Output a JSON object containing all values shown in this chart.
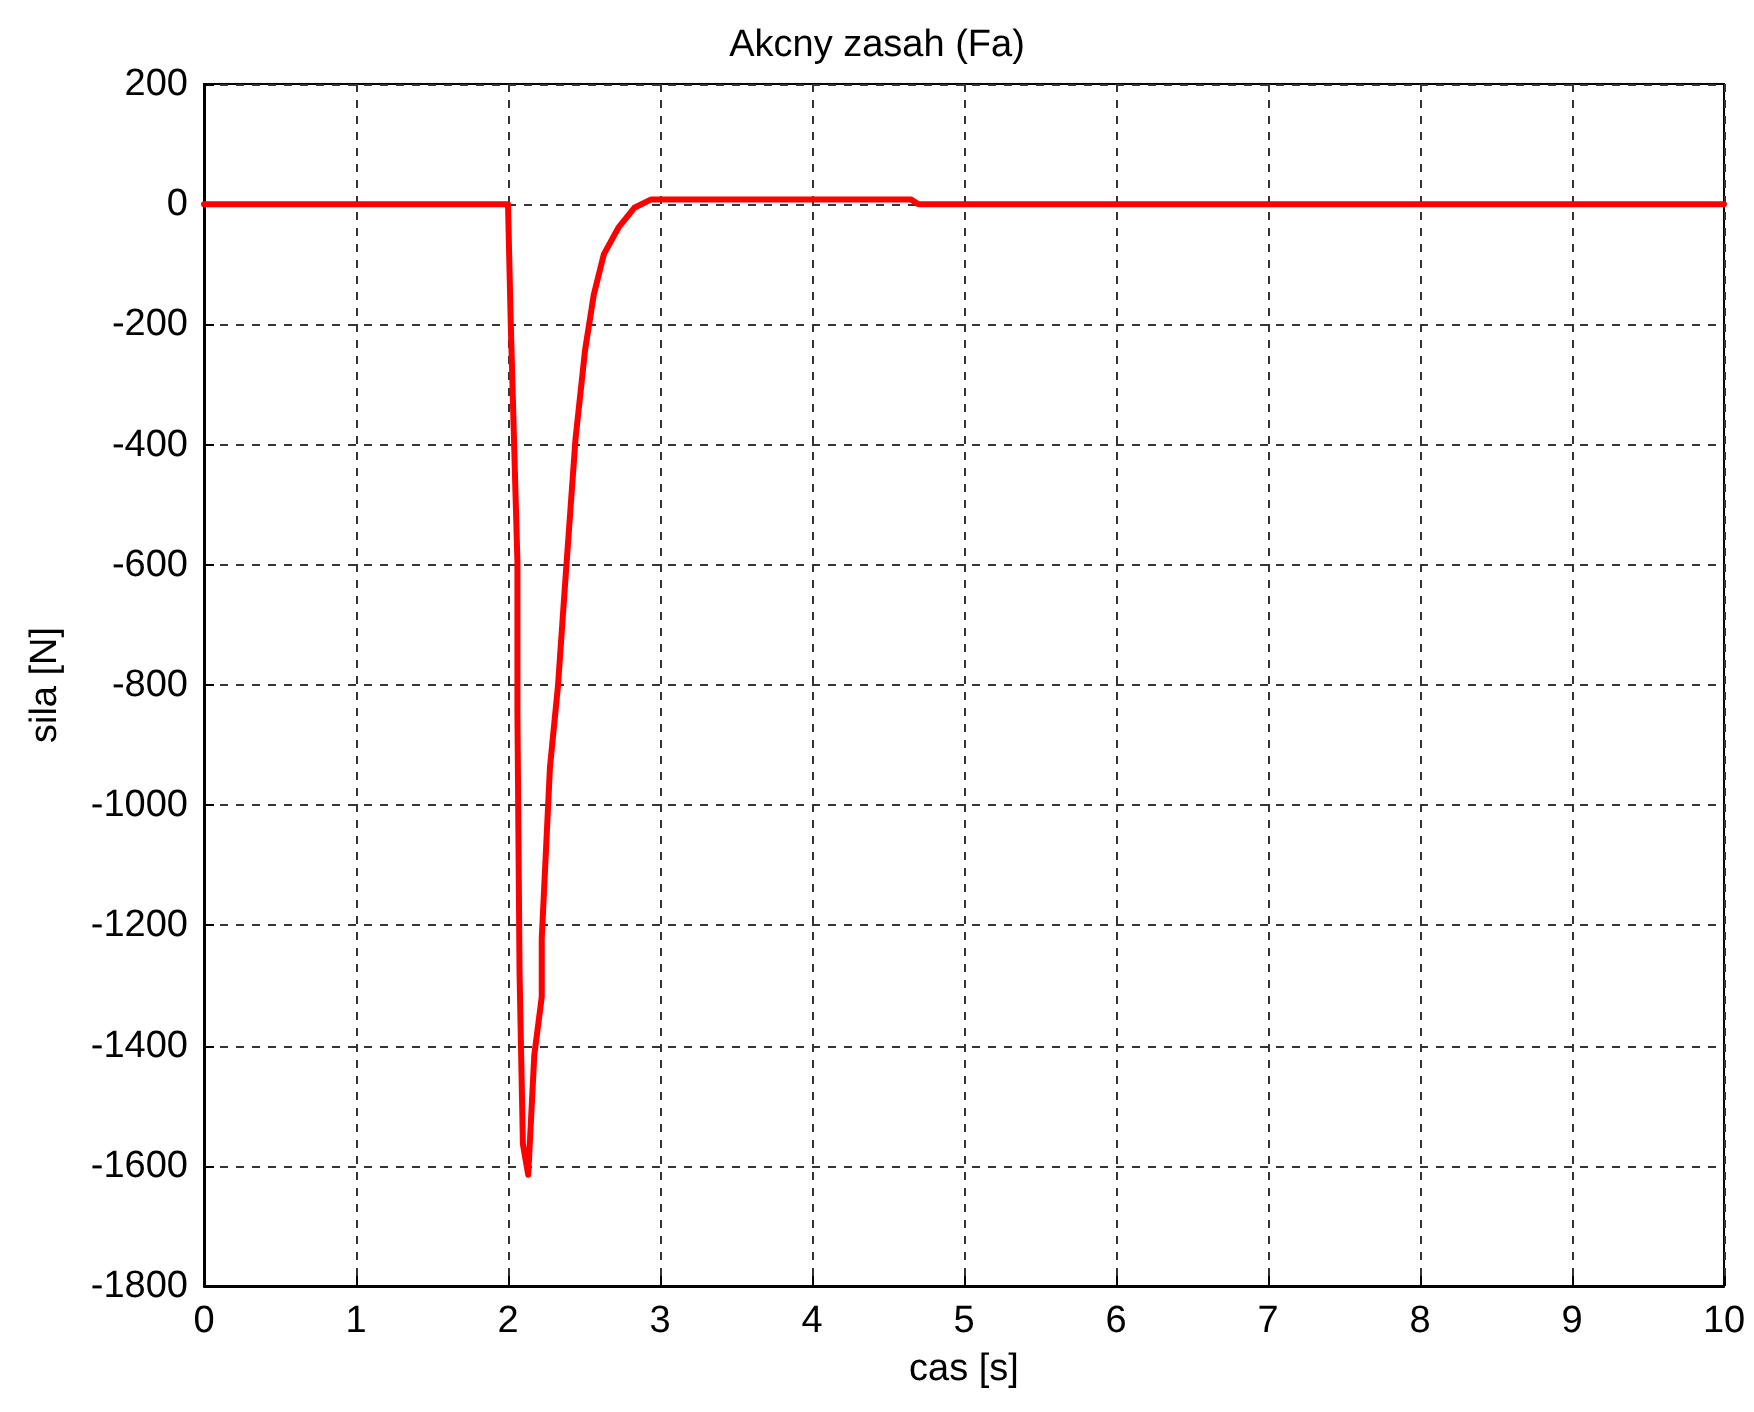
{
  "chart_data": {
    "type": "line",
    "title": "Akcny zasah (Fa)",
    "xlabel": "cas [s]",
    "ylabel": "sila [N]",
    "x": [
      0,
      2,
      2.018,
      2.062,
      2.062,
      2.076,
      2.098,
      2.133,
      2.173,
      2.222,
      2.222,
      2.276,
      2.329,
      2.373,
      2.444,
      2.507,
      2.564,
      2.631,
      2.729,
      2.831,
      2.942,
      3,
      4.65,
      4.7,
      10
    ],
    "series": [
      {
        "color": "#ff0000",
        "values": [
          0,
          0,
          -197,
          -596,
          -846,
          -1279,
          -1564,
          -1615,
          -1416,
          -1319,
          -1222,
          -937,
          -801,
          -641,
          -391,
          -243,
          -151,
          -83,
          -38,
          -6,
          8,
          8,
          8,
          0,
          0
        ]
      }
    ],
    "xlim": [
      0,
      10
    ],
    "xticks": [
      0,
      1,
      2,
      3,
      4,
      5,
      6,
      7,
      8,
      9,
      10
    ],
    "ylim": [
      -1800,
      200
    ],
    "yticks": [
      -1800,
      -1600,
      -1400,
      -1200,
      -1000,
      -800,
      -600,
      -400,
      -200,
      0,
      200
    ],
    "grid": true,
    "marker": "none",
    "line_style": "solid"
  }
}
